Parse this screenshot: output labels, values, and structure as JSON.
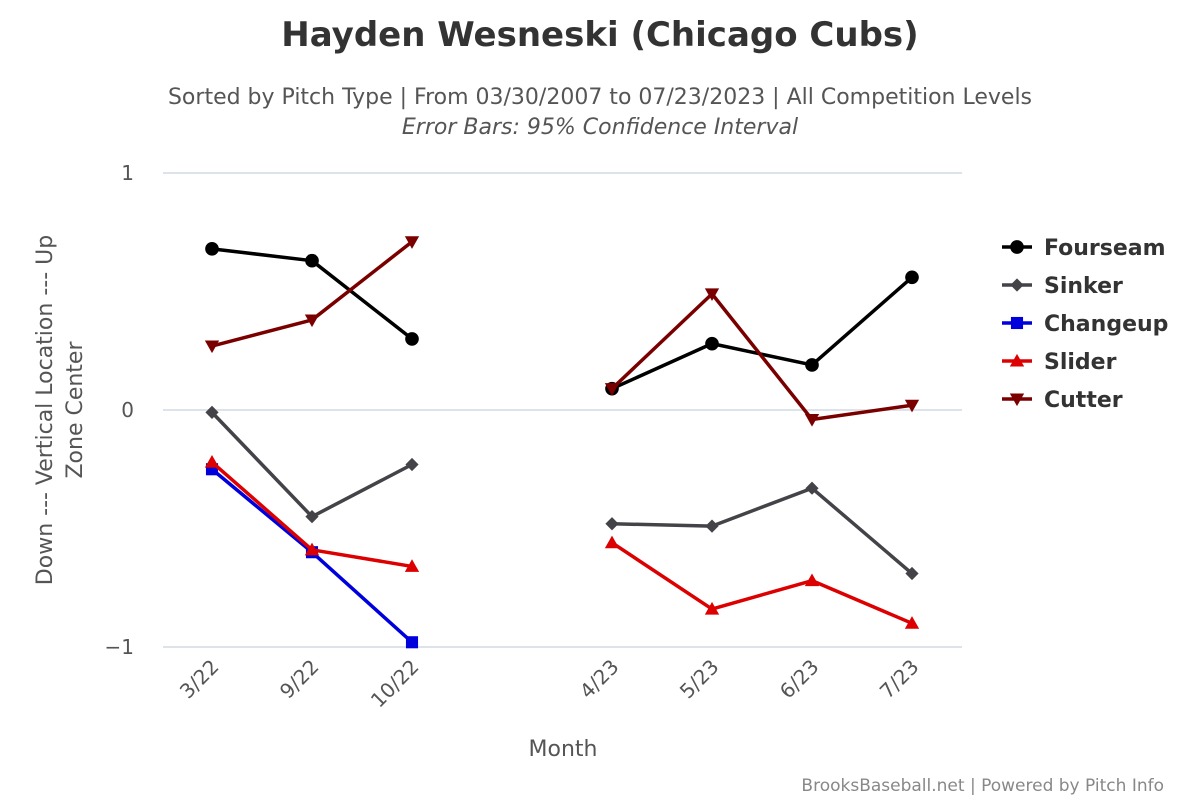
{
  "title": "Hayden Wesneski (Chicago Cubs)",
  "subtitle": "Sorted by Pitch Type | From 03/30/2007 to 07/23/2023 | All Competition Levels",
  "subtitle2": "Error Bars: 95% Confidence Interval",
  "credits": "BrooksBaseball.net | Powered by Pitch Info",
  "chart_data": {
    "type": "line",
    "title": "Hayden Wesneski (Chicago Cubs)",
    "xlabel": "Month",
    "ylabel_line1": "Down --- Vertical Location --- Up",
    "ylabel_line2": "Zone Center",
    "categories": [
      "3/22",
      "9/22",
      "10/22",
      "",
      "4/23",
      "5/23",
      "6/23",
      "7/23"
    ],
    "ylim": [
      -1,
      1
    ],
    "yticks": [
      {
        "value": 1,
        "label": "1"
      },
      {
        "value": 0,
        "label": "0"
      },
      {
        "value": -1,
        "label": "−1"
      }
    ],
    "grid": true,
    "legend_position": "right",
    "series": [
      {
        "name": "Fourseam",
        "color": "#000000",
        "marker": "circle",
        "values": [
          0.68,
          0.63,
          0.3,
          null,
          0.09,
          0.28,
          0.19,
          0.56
        ]
      },
      {
        "name": "Sinker",
        "color": "#434348",
        "marker": "diamond",
        "values": [
          -0.01,
          -0.45,
          -0.23,
          null,
          -0.48,
          -0.49,
          -0.33,
          -0.69
        ]
      },
      {
        "name": "Changeup",
        "color": "#0000dd",
        "marker": "square",
        "values": [
          -0.25,
          -0.6,
          -0.98,
          null,
          null,
          null,
          null,
          null
        ]
      },
      {
        "name": "Slider",
        "color": "#dd0000",
        "marker": "triangle",
        "values": [
          -0.22,
          -0.59,
          -0.66,
          null,
          -0.56,
          -0.84,
          -0.72,
          -0.9
        ]
      },
      {
        "name": "Cutter",
        "color": "#7a0000",
        "marker": "triangle-down",
        "values": [
          0.27,
          0.38,
          0.71,
          null,
          0.09,
          0.49,
          -0.04,
          0.02
        ]
      }
    ]
  }
}
